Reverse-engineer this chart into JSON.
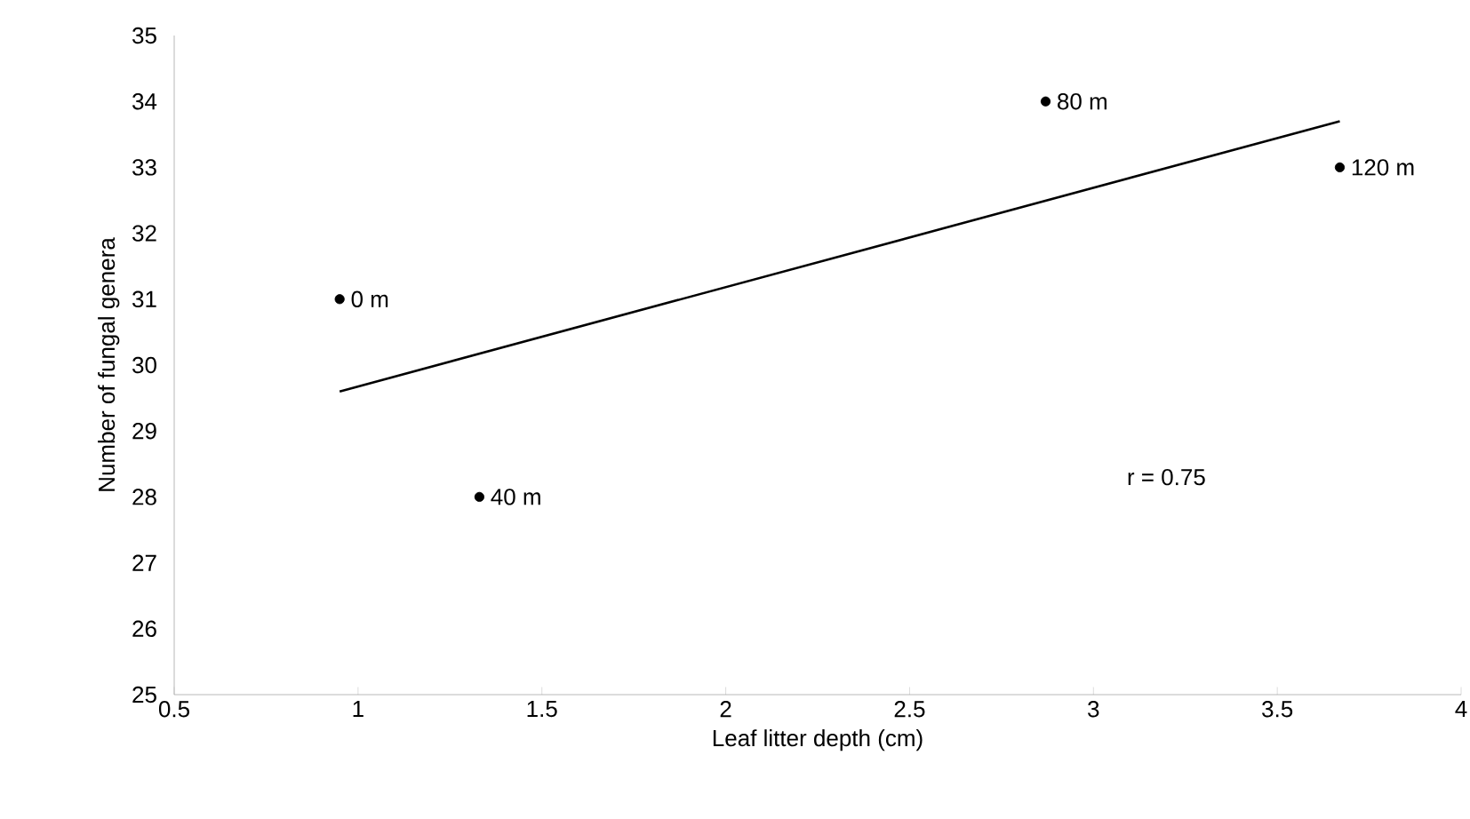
{
  "chart_data": {
    "type": "scatter",
    "xlabel": "Leaf litter depth (cm)",
    "ylabel": "Number of fungal genera",
    "xlim": [
      0.5,
      4
    ],
    "xticks": [
      0.5,
      1,
      1.5,
      2,
      2.5,
      3,
      3.5,
      4
    ],
    "ylim": [
      25,
      35
    ],
    "yticks": [
      25,
      26,
      27,
      28,
      29,
      30,
      31,
      32,
      33,
      34,
      35
    ],
    "grid": false,
    "series": [
      {
        "x": [
          0.95,
          1.33,
          2.87,
          3.67
        ],
        "values": [
          31,
          28,
          34,
          33
        ],
        "color": "#000000",
        "marker": "circle"
      },
      {
        "type": "line",
        "x": [
          0.95,
          3.67
        ],
        "values": [
          29.6,
          33.7
        ],
        "color": "#000000",
        "marker": "none",
        "line_style": "solid"
      }
    ],
    "annotations": [
      {
        "text": "0 m",
        "x": 0.95,
        "y": 31
      },
      {
        "text": "40 m",
        "x": 1.33,
        "y": 28
      },
      {
        "text": "80 m",
        "x": 2.87,
        "y": 34
      },
      {
        "text": "120 m",
        "x": 3.67,
        "y": 33
      },
      "r = 0.75"
    ]
  }
}
